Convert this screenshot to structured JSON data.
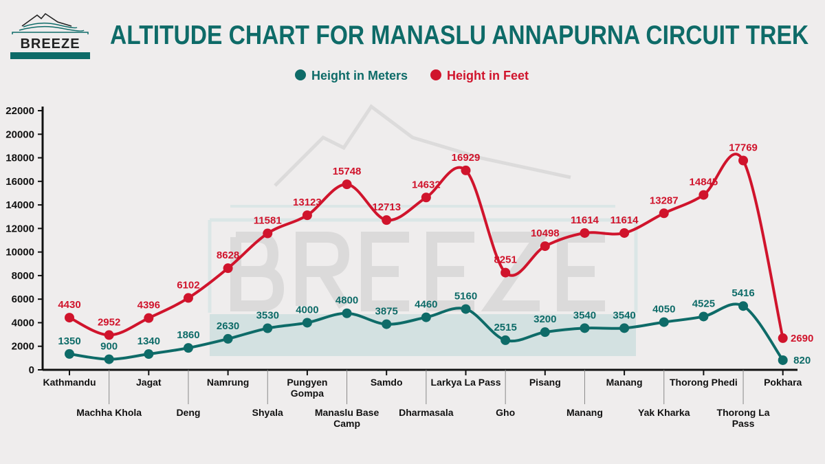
{
  "logo": {
    "text": "BREEZE"
  },
  "watermark": {
    "text": "BREEZE"
  },
  "chart_data": {
    "type": "line",
    "title": "ALTITUDE CHART FOR MANASLU ANNAPURNA CIRCUIT TREK",
    "categories": [
      "Kathmandu",
      "Machha Khola",
      "Jagat",
      "Deng",
      "Namrung",
      "Shyala",
      "Pungyen Gompa",
      "Manaslu Base Camp",
      "Samdo",
      "Dharmasala",
      "Larkya La Pass",
      "Gho",
      "Pisang",
      "Manang",
      "Manang",
      "Yak Kharka",
      "Thorong Phedi",
      "Thorong La Pass",
      "Pokhara"
    ],
    "series": [
      {
        "name": "Height in Meters",
        "color": "#0e6b68",
        "values": [
          1350,
          900,
          1340,
          1860,
          2630,
          3530,
          4000,
          4800,
          3875,
          4460,
          5160,
          2515,
          3200,
          3540,
          3540,
          4050,
          4525,
          5416,
          820
        ]
      },
      {
        "name": "Height in Feet",
        "color": "#d0142c",
        "values": [
          4430,
          2952,
          4396,
          6102,
          8628,
          11581,
          13123,
          15748,
          12713,
          14632,
          16929,
          8251,
          10498,
          11614,
          11614,
          13287,
          14845,
          17769,
          2690
        ]
      }
    ],
    "ylim": [
      0,
      22000
    ],
    "yticks": [
      0,
      2000,
      4000,
      6000,
      8000,
      10000,
      12000,
      14000,
      16000,
      18000,
      20000,
      22000
    ],
    "grid": false,
    "legend": "top-center"
  }
}
